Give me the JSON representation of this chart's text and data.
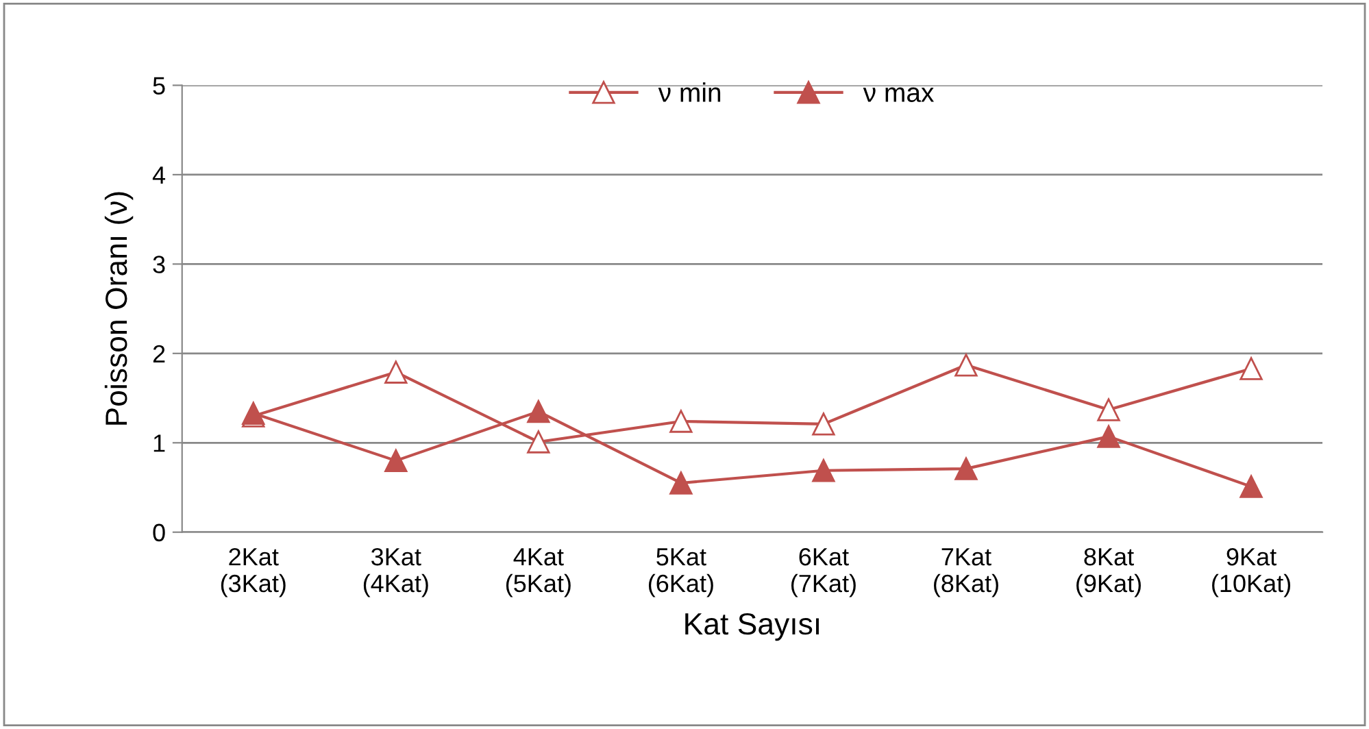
{
  "chart_data": {
    "type": "line",
    "xlabel": "Kat Sayısı",
    "ylabel": "Poisson Oranı (ν)",
    "categories": [
      "2Kat\n(3Kat)",
      "3Kat\n(4Kat)",
      "4Kat\n(5Kat)",
      "5Kat\n(6Kat)",
      "6Kat\n(7Kat)",
      "7Kat\n(8Kat)",
      "8Kat\n(9Kat)",
      "9Kat\n(10Kat)"
    ],
    "series": [
      {
        "name": "ν min",
        "color": "#c0504d",
        "values": [
          1.3,
          1.79,
          1.01,
          1.24,
          1.21,
          1.87,
          1.37,
          1.83
        ]
      },
      {
        "name": "ν max",
        "color": "#c0504d",
        "values": [
          1.33,
          0.8,
          1.35,
          0.55,
          0.69,
          0.71,
          1.07,
          0.51
        ]
      }
    ],
    "ylim": [
      0,
      5
    ],
    "yticks": [
      0,
      1,
      2,
      3,
      4,
      5
    ],
    "grid": "y",
    "legend": "top",
    "marker": "triangle",
    "line_style": "solid"
  }
}
